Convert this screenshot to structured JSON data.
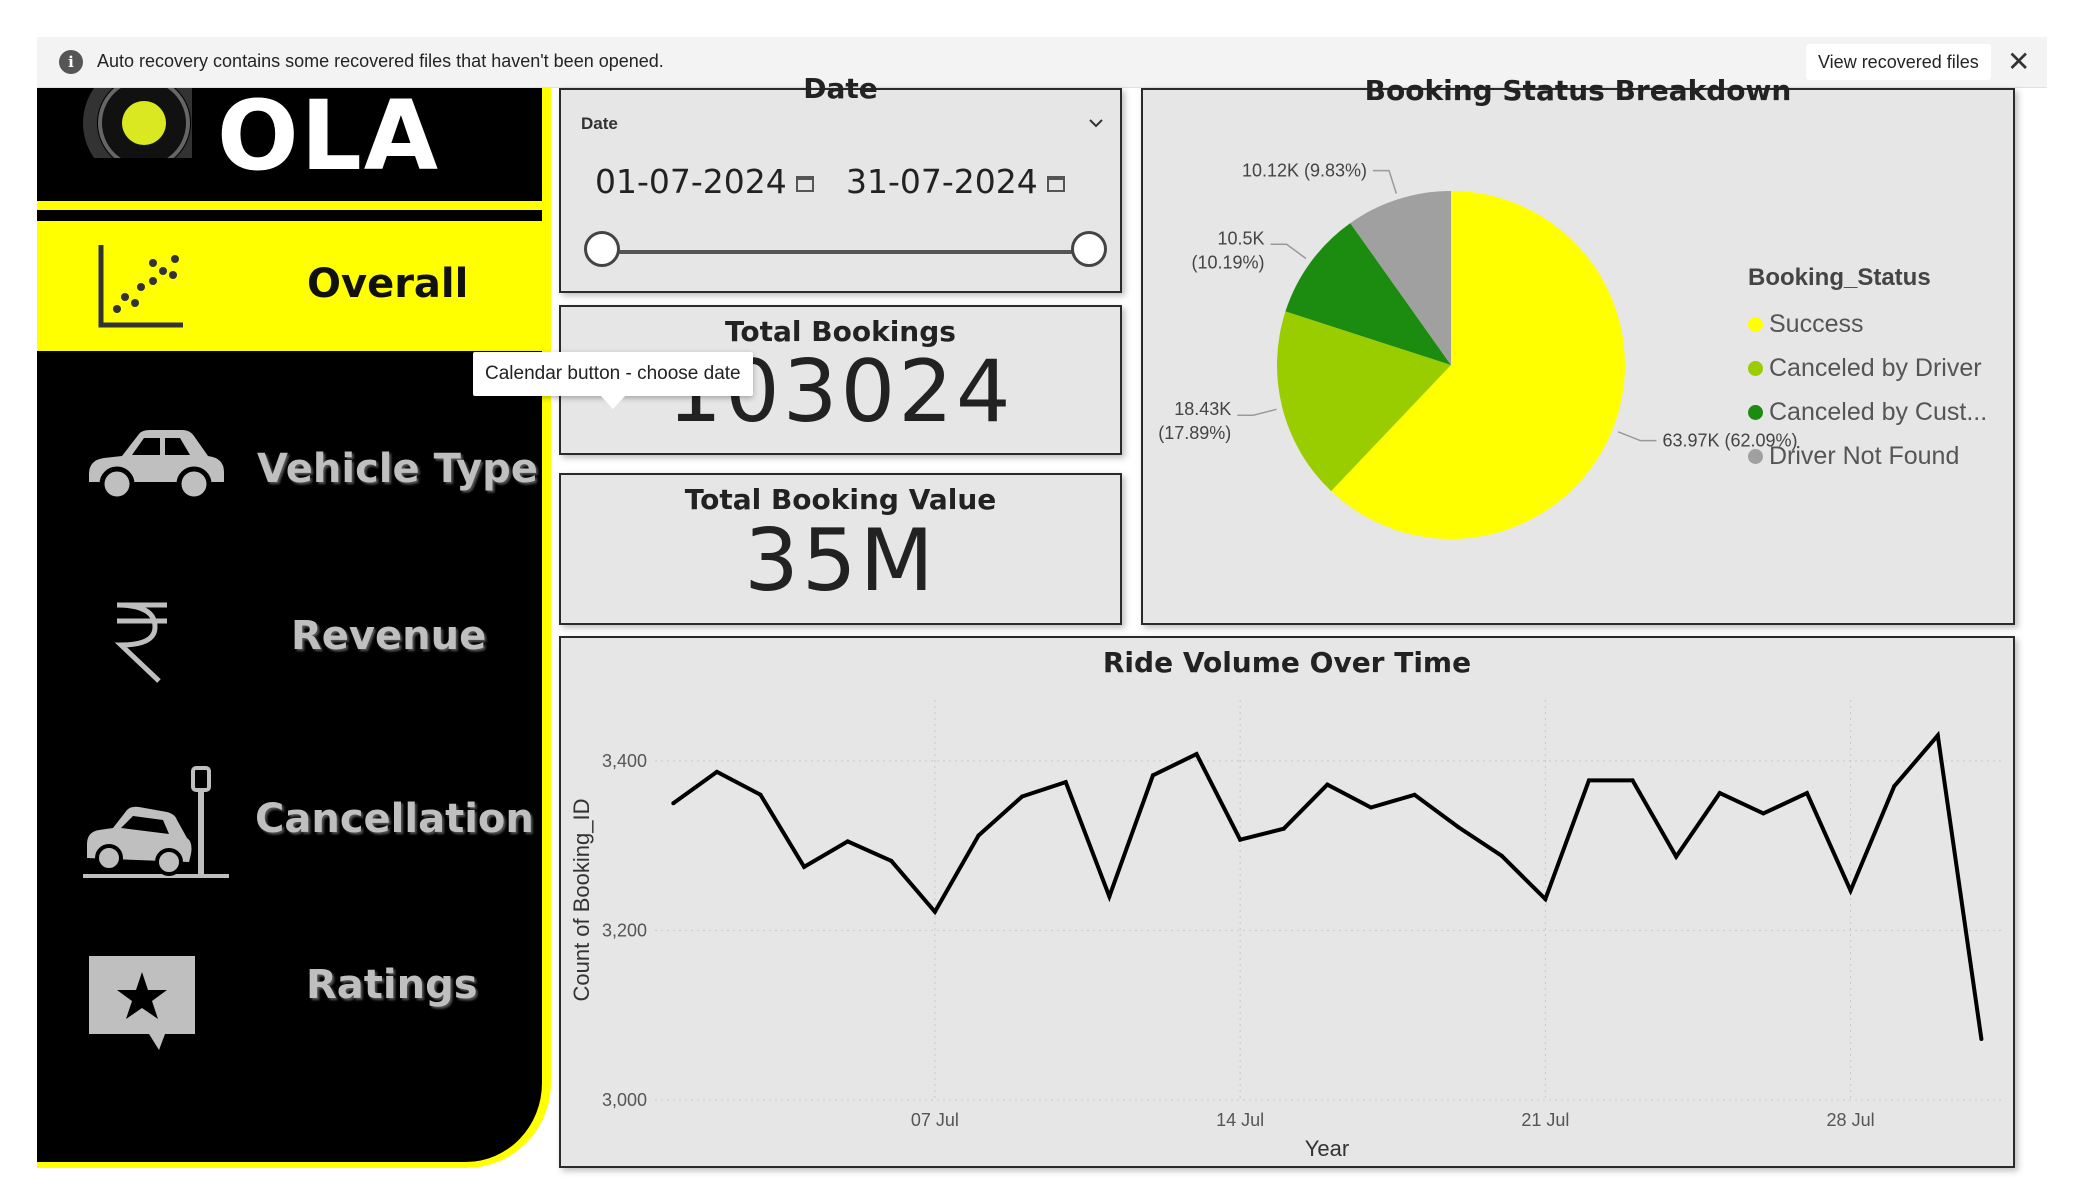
{
  "notification": {
    "message": "Auto recovery contains some recovered files that haven't been opened.",
    "view_button": "View recovered files",
    "close_glyph": "✕",
    "info_glyph": "i"
  },
  "sidebar": {
    "logo_text": "OLA",
    "items": [
      {
        "label": "Overall",
        "icon": "scatter-chart-icon",
        "active": true
      },
      {
        "label": "Vehicle Type",
        "icon": "car-icon",
        "active": false
      },
      {
        "label": "Revenue",
        "icon": "rupee-icon",
        "active": false
      },
      {
        "label": "Cancellation",
        "icon": "car-crash-icon",
        "active": false
      },
      {
        "label": "Ratings",
        "icon": "star-message-icon",
        "active": false
      }
    ],
    "colors": {
      "accent": "#ffff00",
      "background": "#000000"
    }
  },
  "date_slicer": {
    "title": "Date",
    "field_label": "Date",
    "start": "01-07-2024",
    "end": "31-07-2024"
  },
  "tooltip": {
    "text": "Calendar button - choose date"
  },
  "kpis": [
    {
      "title": "Total Bookings",
      "value": "103024"
    },
    {
      "title": "Total Booking Value",
      "value": "35M"
    }
  ],
  "pie": {
    "title": "Booking Status Breakdown",
    "legend_title": "Booking_Status",
    "slices": [
      {
        "name": "Success",
        "legend": "Success",
        "value": 63970,
        "label_value": "63.97K",
        "label_pct": "(62.09%)",
        "color": "#ffff00"
      },
      {
        "name": "Canceled by Driver",
        "legend": "Canceled by Driver",
        "value": 18430,
        "label_value": "18.43K",
        "label_pct": "(17.89%)",
        "color": "#9acd00"
      },
      {
        "name": "Canceled by Customer",
        "legend": "Canceled by Cust...",
        "value": 10500,
        "label_value": "10.5K",
        "label_pct": "(10.19%)",
        "color": "#1b8c10"
      },
      {
        "name": "Driver Not Found",
        "legend": "Driver Not Found",
        "value": 10120,
        "label_value": "10.12K",
        "label_pct": "(9.83%)",
        "color": "#a0a0a0"
      }
    ]
  },
  "chart_data": {
    "type": "line",
    "title": "Ride Volume Over Time",
    "xlabel": "Year",
    "ylabel": "Count of Booking_ID",
    "ylim": [
      3000,
      3460
    ],
    "yticks": [
      3000,
      3200,
      3400
    ],
    "ytick_labels": [
      "3,000",
      "3,200",
      "3,400"
    ],
    "xtick_labels": [
      "07 Jul",
      "14 Jul",
      "21 Jul",
      "28 Jul"
    ],
    "xtick_days": [
      7,
      14,
      21,
      28
    ],
    "x_days": [
      1,
      2,
      3,
      4,
      5,
      6,
      7,
      8,
      9,
      10,
      11,
      12,
      13,
      14,
      15,
      16,
      17,
      18,
      19,
      20,
      21,
      22,
      23,
      24,
      25,
      26,
      27,
      28,
      29,
      30,
      31
    ],
    "series": [
      {
        "values": [
          3350,
          3387,
          3360,
          3275,
          3305,
          3282,
          3222,
          3312,
          3358,
          3375,
          3240,
          3383,
          3408,
          3307,
          3320,
          3372,
          3345,
          3360,
          3322,
          3288,
          3237,
          3377,
          3377,
          3287,
          3362,
          3338,
          3362,
          3247,
          3370,
          3430,
          3072
        ],
        "color": "#000000"
      }
    ],
    "grid": true
  }
}
